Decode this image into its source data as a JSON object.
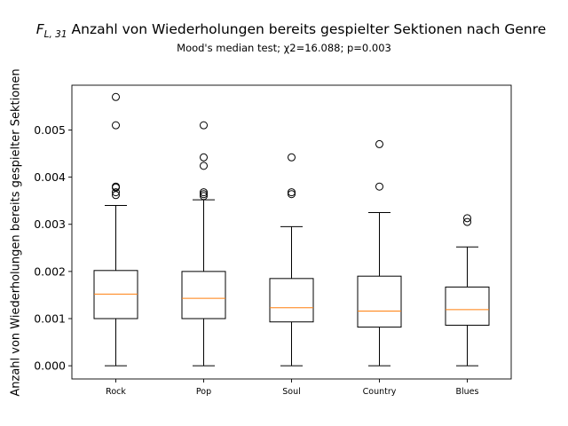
{
  "chart_data": {
    "type": "boxplot",
    "title_symbol": "F",
    "title_subscript": "L, 31",
    "title": "Anzahl von Wiederholungen bereits gespielter Sektionen nach Genre",
    "subtitle": "Mood's median test; χ2=16.088; p=0.003",
    "xlabel": "",
    "ylabel": "Anzahl von Wiederholungen bereits gespielter Sektionen",
    "ylim": [
      -0.00028,
      0.00595
    ],
    "yticks": [
      0.0,
      0.001,
      0.002,
      0.003,
      0.004,
      0.005
    ],
    "ytick_labels": [
      "0.000",
      "0.001",
      "0.002",
      "0.003",
      "0.004",
      "0.005"
    ],
    "grid": false,
    "colors": {
      "box": "#000000",
      "median": "#ff7f0e",
      "flier": "#000000"
    },
    "categories": [
      "Rock",
      "Pop",
      "Soul",
      "Country",
      "Blues"
    ],
    "boxes": [
      {
        "whislo": 0.0,
        "q1": 0.001,
        "med": 0.00152,
        "q3": 0.00202,
        "whishi": 0.0034,
        "fliers": [
          0.0057,
          0.0051,
          0.0038,
          0.00378,
          0.00368,
          0.00362
        ]
      },
      {
        "whislo": 0.0,
        "q1": 0.001,
        "med": 0.00143,
        "q3": 0.002,
        "whishi": 0.00352,
        "fliers": [
          0.0051,
          0.00442,
          0.00424,
          0.00368,
          0.00364,
          0.0036
        ]
      },
      {
        "whislo": 0.0,
        "q1": 0.00093,
        "med": 0.00123,
        "q3": 0.00185,
        "whishi": 0.00295,
        "fliers": [
          0.00442,
          0.00368,
          0.00364
        ]
      },
      {
        "whislo": 0.0,
        "q1": 0.00082,
        "med": 0.00116,
        "q3": 0.0019,
        "whishi": 0.00325,
        "fliers": [
          0.0047,
          0.0038
        ]
      },
      {
        "whislo": 0.0,
        "q1": 0.00086,
        "med": 0.00119,
        "q3": 0.00167,
        "whishi": 0.00252,
        "fliers": [
          0.00313,
          0.00305
        ]
      }
    ]
  }
}
